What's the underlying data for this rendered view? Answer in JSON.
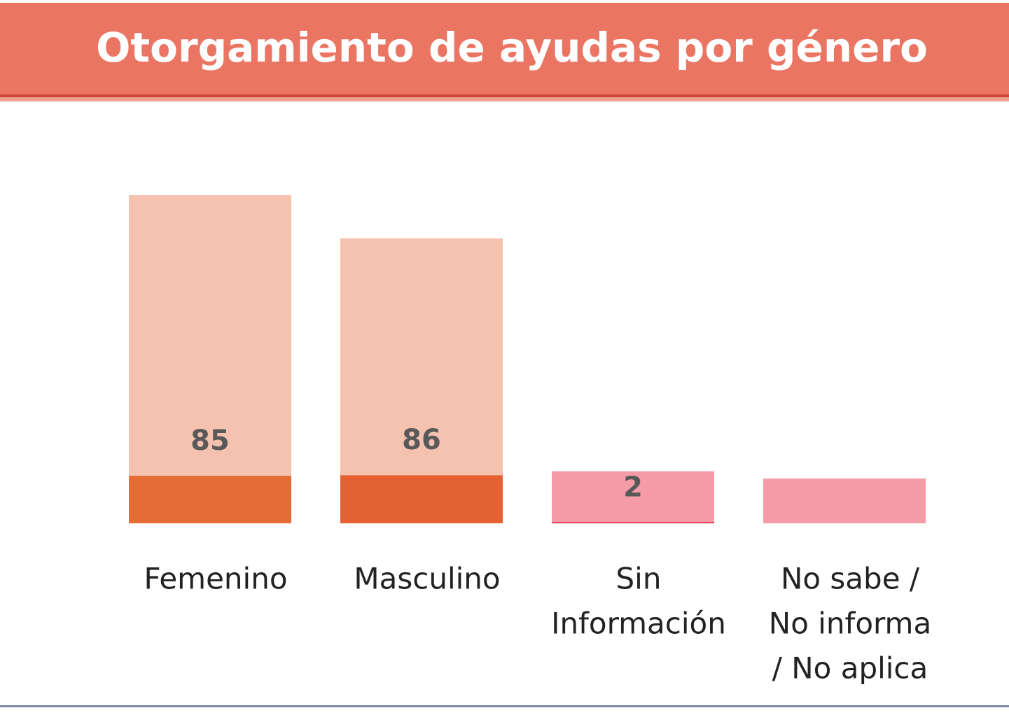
{
  "chart_data": {
    "type": "stacked-bar",
    "title": "Otorgamiento de ayudas por género",
    "categories": [
      [
        "Femenino"
      ],
      [
        "Masculino"
      ],
      [
        "Sin",
        "Información"
      ],
      [
        "No sabe /",
        "No informa",
        "/ No aplica"
      ]
    ],
    "series": [
      {
        "colors": [
          "#e46c35",
          "#e46232",
          "#e8173a",
          "#e8173a"
        ],
        "values": [
          85,
          86,
          2,
          0
        ]
      },
      {
        "colors": [
          "#f5c2b0",
          "#f5c2b0",
          "#f59ca8",
          "#f59ca8"
        ],
        "values": [
          501,
          423,
          91,
          80
        ]
      }
    ],
    "value_label_series": 0
  }
}
